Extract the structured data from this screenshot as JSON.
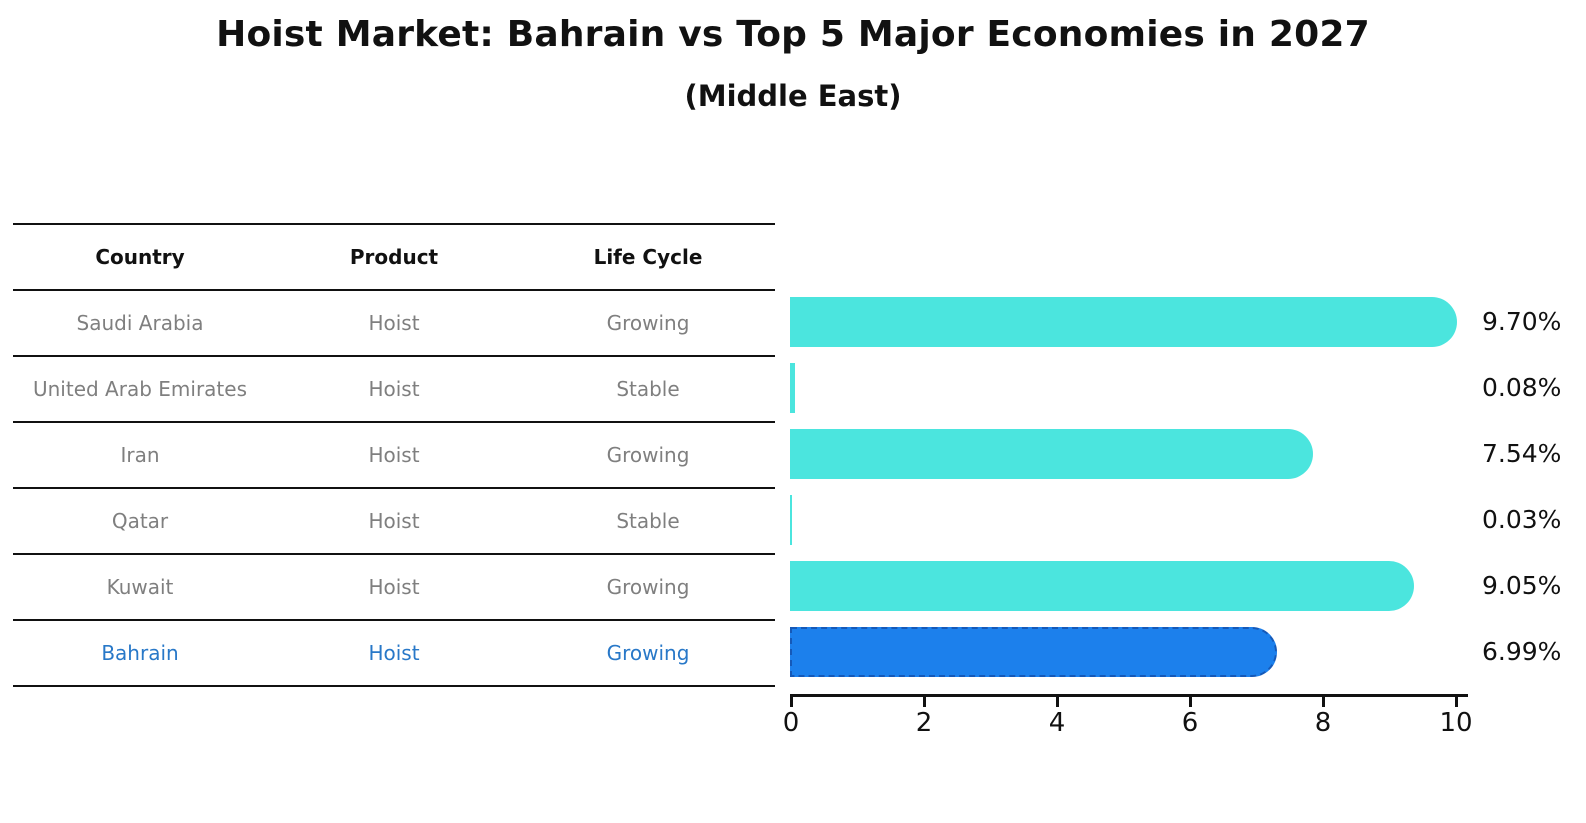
{
  "title": "Hoist Market: Bahrain vs Top 5 Major Economies in 2027",
  "subtitle": "(Middle East)",
  "table": {
    "headers": [
      "Country",
      "Product",
      "Life Cycle"
    ],
    "rows": [
      {
        "country": "Saudi Arabia",
        "product": "Hoist",
        "life_cycle": "Growing",
        "highlighted": false
      },
      {
        "country": "United Arab Emirates",
        "product": "Hoist",
        "life_cycle": "Stable",
        "highlighted": false
      },
      {
        "country": "Iran",
        "product": "Hoist",
        "life_cycle": "Growing",
        "highlighted": false
      },
      {
        "country": "Qatar",
        "product": "Hoist",
        "life_cycle": "Stable",
        "highlighted": false
      },
      {
        "country": "Kuwait",
        "product": "Hoist",
        "life_cycle": "Growing",
        "highlighted": false
      },
      {
        "country": "Bahrain",
        "product": "Hoist",
        "life_cycle": "Growing",
        "highlighted": true
      }
    ]
  },
  "chart_data": {
    "type": "bar",
    "orientation": "horizontal",
    "title": "Hoist Market: Bahrain vs Top 5 Major Economies in 2027",
    "subtitle": "(Middle East)",
    "categories": [
      "Saudi Arabia",
      "United Arab Emirates",
      "Iran",
      "Qatar",
      "Kuwait",
      "Bahrain"
    ],
    "values": [
      9.7,
      0.08,
      7.54,
      0.03,
      9.05,
      6.99
    ],
    "value_labels": [
      "9.70%",
      "0.08%",
      "7.54%",
      "0.03%",
      "9.05%",
      "6.99%"
    ],
    "xlabel": "",
    "ylabel": "",
    "xticks": [
      0,
      2,
      4,
      6,
      8,
      10
    ],
    "xlim": [
      0,
      10.2
    ],
    "highlight_index": 5,
    "grid": false,
    "legend": false
  },
  "colors": {
    "bar_fill": "#4BE5DE",
    "highlight_fill": "#1C80EC",
    "highlight_border": "#1559B8",
    "highlight_text": "#2878C8",
    "cell_text": "#7F7F7F",
    "header_text": "#111111",
    "axis_text": "#111111"
  }
}
